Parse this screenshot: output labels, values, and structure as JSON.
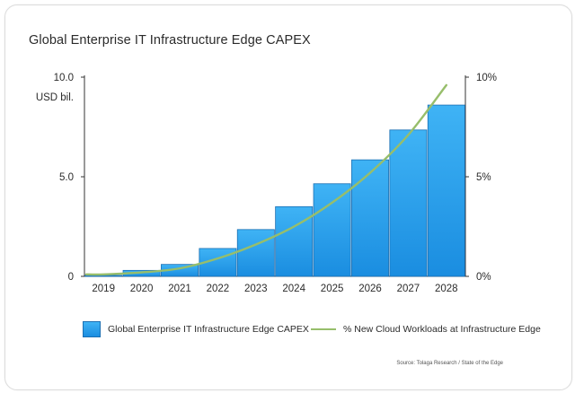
{
  "chart_data": {
    "type": "bar+line",
    "title": "Global Enterprise IT Infrastructure Edge CAPEX",
    "categories": [
      "2019",
      "2020",
      "2021",
      "2022",
      "2023",
      "2024",
      "2025",
      "2026",
      "2027",
      "2028"
    ],
    "series": [
      {
        "name": "Global Enterprise IT Infrastructure Edge CAPEX",
        "kind": "bar",
        "axis": "left",
        "values": [
          0.05,
          0.3,
          0.6,
          1.4,
          2.35,
          3.5,
          4.65,
          5.85,
          7.35,
          8.6
        ]
      },
      {
        "name": "% New Cloud Workloads at Infrastructure Edge",
        "kind": "line",
        "axis": "right",
        "values": [
          0.1,
          0.2,
          0.4,
          0.9,
          1.6,
          2.5,
          3.7,
          5.2,
          7.1,
          9.6
        ]
      }
    ],
    "y_left": {
      "label": "USD bil.",
      "ylim": [
        0,
        10
      ],
      "ticks": [
        0,
        5.0,
        10.0
      ],
      "tick_labels": [
        "0",
        "5.0",
        "10.0"
      ]
    },
    "y_right": {
      "ylim": [
        0,
        10
      ],
      "ticks": [
        0,
        5,
        10
      ],
      "tick_labels": [
        "0%",
        "5%",
        "10%"
      ]
    },
    "grid": false,
    "legend_position": "bottom",
    "colors": {
      "bar_top": "#3fb3f5",
      "bar_bottom": "#1a8de0",
      "bar_edge": "#1a6fb3",
      "line": "#97be6b"
    }
  },
  "source": "Source: Tolaga Research / State of the Edge"
}
